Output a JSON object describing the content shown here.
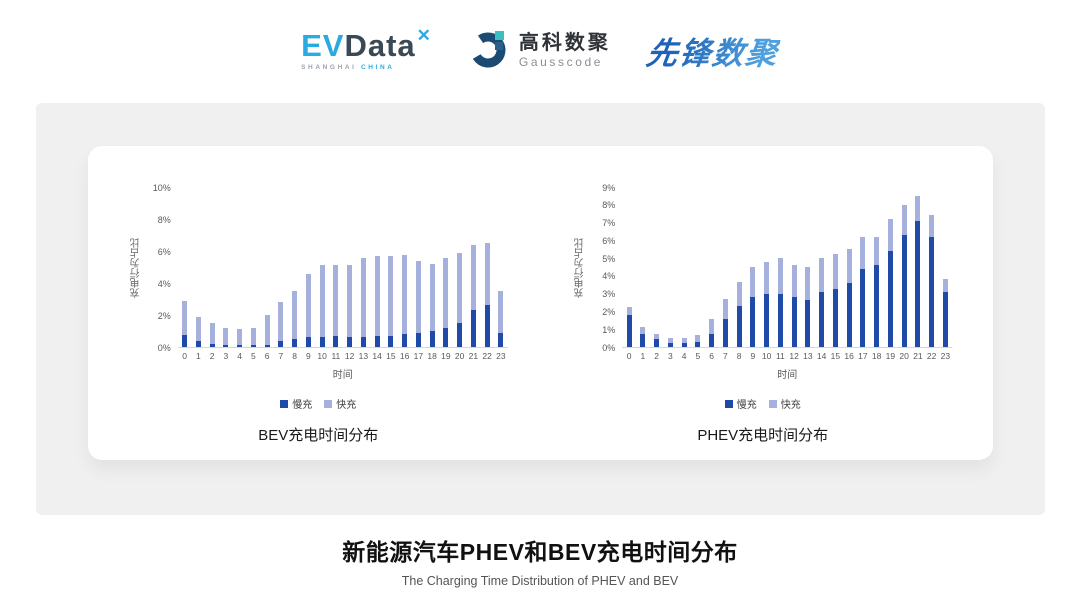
{
  "header": {
    "evdata": {
      "ev": "EV",
      "data": "Data",
      "x_mark": "✕",
      "sub_left": "SHANGHAI ",
      "sub_right": "CHINA"
    },
    "gausscode": {
      "cn": "高科数聚",
      "en": "Gausscode"
    },
    "pioneer": {
      "text": "先锋数聚"
    }
  },
  "legend": {
    "slow_label": "慢充",
    "fast_label": "快充"
  },
  "colors": {
    "slow": "#1F4AA8",
    "fast": "#A6B0DC",
    "evdata_blue": "#29ABE2",
    "evdata_navy": "#3A4956",
    "gauss_navy": "#1B4A73",
    "gauss_teal": "#3BBFC0",
    "pioneer_blue": "#2878C8",
    "panel_gray": "#F0F0F0"
  },
  "footer": {
    "title": "新能源汽车PHEV和BEV充电时间分布",
    "subtitle": "The Charging Time Distribution of PHEV and BEV"
  },
  "chart_data": [
    {
      "type": "bar",
      "stacked": true,
      "title": "BEV充电时间分布",
      "xlabel": "时间",
      "ylabel": "充电行为占比",
      "ylim": [
        0,
        10
      ],
      "ytick_step": 2,
      "ytick_suffix": "%",
      "grid": false,
      "legend_position": "bottom",
      "categories": [
        0,
        1,
        2,
        3,
        4,
        5,
        6,
        7,
        8,
        9,
        10,
        11,
        12,
        13,
        14,
        15,
        16,
        17,
        18,
        19,
        20,
        21,
        22,
        23
      ],
      "series": [
        {
          "name": "慢充",
          "values": [
            0.75,
            0.35,
            0.2,
            0.1,
            0.1,
            0.1,
            0.15,
            0.35,
            0.5,
            0.65,
            0.65,
            0.7,
            0.6,
            0.6,
            0.7,
            0.7,
            0.8,
            0.9,
            1.0,
            1.2,
            1.5,
            2.3,
            2.6,
            0.9
          ]
        },
        {
          "name": "快充",
          "values": [
            2.1,
            1.55,
            1.3,
            1.1,
            1.0,
            1.1,
            1.85,
            2.45,
            3.0,
            3.9,
            4.45,
            4.45,
            4.55,
            4.95,
            5.0,
            5.0,
            4.95,
            4.5,
            4.2,
            4.35,
            4.35,
            4.05,
            3.9,
            2.6
          ]
        }
      ]
    },
    {
      "type": "bar",
      "stacked": true,
      "title": "PHEV充电时间分布",
      "xlabel": "时间",
      "ylabel": "充电行为占比",
      "ylim": [
        0,
        9
      ],
      "ytick_step": 1,
      "ytick_suffix": "%",
      "grid": false,
      "legend_position": "bottom",
      "categories": [
        0,
        1,
        2,
        3,
        4,
        5,
        6,
        7,
        8,
        9,
        10,
        11,
        12,
        13,
        14,
        15,
        16,
        17,
        18,
        19,
        20,
        21,
        22,
        23
      ],
      "series": [
        {
          "name": "慢充",
          "values": [
            1.8,
            0.75,
            0.45,
            0.25,
            0.25,
            0.3,
            0.75,
            1.6,
            2.3,
            2.8,
            3.0,
            3.0,
            2.8,
            2.65,
            3.1,
            3.25,
            3.6,
            4.4,
            4.6,
            5.4,
            6.3,
            7.1,
            6.2,
            3.1
          ]
        },
        {
          "name": "快充",
          "values": [
            0.45,
            0.35,
            0.3,
            0.25,
            0.25,
            0.4,
            0.85,
            1.1,
            1.35,
            1.7,
            1.8,
            2.0,
            1.8,
            1.85,
            1.9,
            2.0,
            1.9,
            1.8,
            1.6,
            1.8,
            1.7,
            1.4,
            1.2,
            0.75
          ]
        }
      ]
    }
  ]
}
